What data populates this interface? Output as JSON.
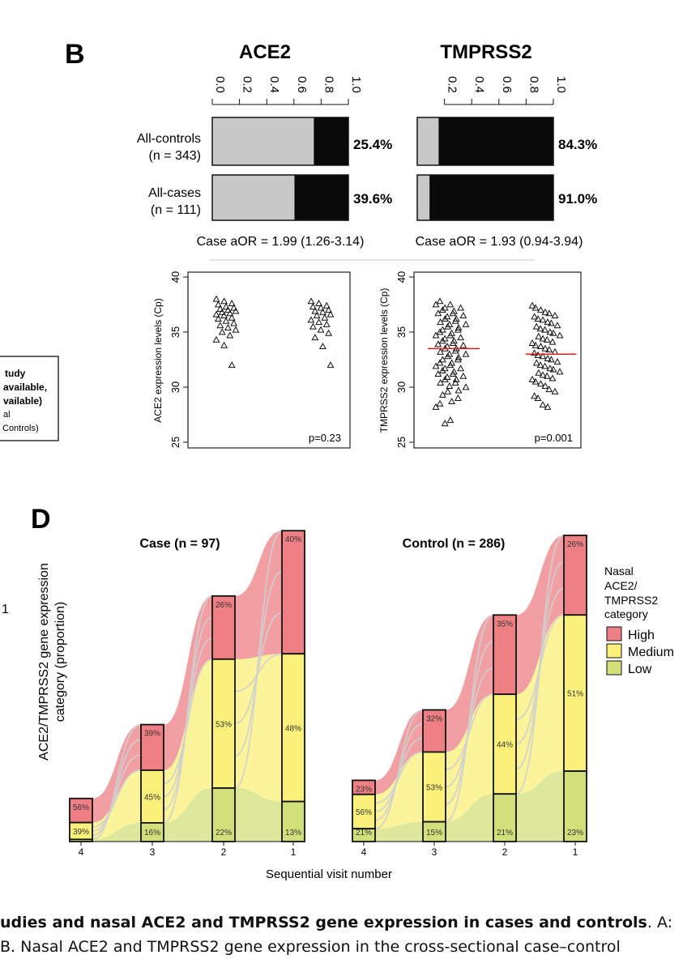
{
  "panel_b": {
    "label": "B",
    "ace2": {
      "title": "ACE2",
      "ticks": [
        "0.0",
        "0.2",
        "0.4",
        "0.6",
        "0.8",
        "1.0"
      ],
      "controls_pct": "25.4%",
      "cases_pct": "39.6%",
      "aor": "Case aOR = 1.99 (1.26-3.14)"
    },
    "tmprss2": {
      "title": "TMPRSS2",
      "ticks": [
        "0.2",
        "0.4",
        "0.6",
        "0.8",
        "1.0"
      ],
      "controls_pct": "84.3%",
      "cases_pct": "91.0%",
      "aor": "Case aOR = 1.93 (0.94-3.94)"
    },
    "row_labels": {
      "controls_line1": "All-controls",
      "controls_line2": "(n = 343)",
      "cases_line1": "All-cases",
      "cases_line2": "(n = 111)"
    },
    "colors": {
      "light": "#c8c8c8",
      "dark": "#0a0a0a"
    }
  },
  "panel_b_scatter": {
    "ace2": {
      "ylabel": "ACE2 expression levels (Cp)",
      "yticks": [
        "25",
        "30",
        "35",
        "40"
      ],
      "p": "p=0.23"
    },
    "tmprss2": {
      "ylabel": "TMPRSS2 expression levels (Cp)",
      "yticks": [
        "25",
        "30",
        "35",
        "40"
      ],
      "p": "p=0.001",
      "median_color": "#d42020"
    }
  },
  "left_legend": {
    "lines": [
      "tudy",
      "available,",
      "vailable)",
      "al",
      "Controls)"
    ]
  },
  "left_fragment": "1",
  "panel_d": {
    "label": "D",
    "ylabel_line1": "ACE2/TMPRSS2 gene expression",
    "ylabel_line2": "category (proportion)",
    "xlabel": "Sequential visit number",
    "case_title": "Case (n = 97)",
    "control_title": "Control (n = 286)",
    "legend": {
      "title_lines": [
        "Nasal",
        "ACE2/",
        "TMPRSS2",
        "category"
      ],
      "items": [
        {
          "label": "High",
          "color": "#ee7f84"
        },
        {
          "label": "Medium",
          "color": "#faf07a"
        },
        {
          "label": "Low",
          "color": "#d2e07c"
        }
      ]
    }
  },
  "chart_data": [
    {
      "type": "bar",
      "title": "ACE2",
      "categories": [
        "All-controls (n = 343)",
        "All-cases (n = 111)"
      ],
      "series": [
        {
          "values": [
            0.254,
            0.396
          ]
        }
      ],
      "value_labels": [
        "25.4%",
        "39.6%"
      ],
      "ylim": [
        0,
        1
      ],
      "orientation": "horizontal-stacked-proportion"
    },
    {
      "type": "bar",
      "title": "TMPRSS2",
      "categories": [
        "All-controls (n = 343)",
        "All-cases (n = 111)"
      ],
      "series": [
        {
          "values": [
            0.843,
            0.91
          ]
        }
      ],
      "value_labels": [
        "84.3%",
        "91.0%"
      ],
      "ylim": [
        0,
        1
      ],
      "orientation": "horizontal-stacked-proportion"
    },
    {
      "type": "scatter",
      "ylabel": "ACE2 expression levels (Cp)",
      "ylim": [
        25,
        40
      ],
      "groups": [
        {
          "name": "group1",
          "y": [
            38,
            37.8,
            37.6,
            37.5,
            37.3,
            37.2,
            37.1,
            37.0,
            36.9,
            36.8,
            36.7,
            36.6,
            36.5,
            36.3,
            36.2,
            36.0,
            35.8,
            35.6,
            35.4,
            35.2,
            35.0,
            34.7,
            34.3,
            33.8,
            32.0
          ]
        },
        {
          "name": "group2",
          "y": [
            37.8,
            37.6,
            37.4,
            37.3,
            37.2,
            37.0,
            36.9,
            36.8,
            36.6,
            36.5,
            36.3,
            36.1,
            35.9,
            35.7,
            35.5,
            35.2,
            34.9,
            34.5,
            33.7,
            32.0
          ]
        }
      ],
      "annotation": "p=0.23"
    },
    {
      "type": "scatter",
      "ylabel": "TMPRSS2 expression levels (Cp)",
      "ylim": [
        25,
        40
      ],
      "groups": [
        {
          "name": "group1",
          "median": 33.5,
          "y": [
            37.8,
            37.5,
            37.2,
            37.0,
            36.7,
            36.5,
            36.2,
            36.0,
            35.7,
            35.5,
            35.2,
            35.0,
            34.7,
            34.5,
            34.2,
            34.0,
            33.8,
            33.5,
            33.3,
            33.0,
            32.8,
            32.5,
            32.2,
            32.0,
            31.7,
            31.5,
            31.2,
            31.0,
            30.7,
            30.4,
            30.0,
            29.6,
            29.0,
            28.5,
            27.0
          ]
        },
        {
          "name": "group2",
          "median": 33.0,
          "y": [
            37.2,
            36.8,
            36.5,
            36.2,
            35.9,
            35.6,
            35.3,
            35.0,
            34.7,
            34.4,
            34.1,
            33.8,
            33.5,
            33.2,
            32.9,
            32.6,
            32.3,
            32.0,
            31.7,
            31.4,
            31.1,
            30.8,
            30.5,
            30.1,
            29.6,
            29.0,
            28.2
          ]
        }
      ],
      "annotation": "p=0.001"
    },
    {
      "type": "bar",
      "title": "Case (n = 97)",
      "xlabel": "Sequential visit number",
      "ylabel": "ACE2/TMPRSS2 gene expression category (proportion)",
      "categories": [
        "4",
        "3",
        "2",
        "1"
      ],
      "series": [
        {
          "name": "High",
          "values": [
            0.56,
            0.39,
            0.26,
            0.4
          ],
          "labels": [
            "56%",
            "39%",
            "26%",
            "40%"
          ]
        },
        {
          "name": "Medium",
          "values": [
            0.39,
            0.45,
            0.53,
            0.48
          ],
          "labels": [
            "39%",
            "45%",
            "53%",
            "48%"
          ]
        },
        {
          "name": "Low",
          "values": [
            0.05,
            0.16,
            0.22,
            0.13
          ],
          "labels": [
            "",
            "16%",
            "22%",
            "13%"
          ]
        }
      ],
      "bar_heights_relative": [
        0.14,
        0.38,
        0.79,
        1.0
      ]
    },
    {
      "type": "bar",
      "title": "Control (n = 286)",
      "xlabel": "Sequential visit number",
      "categories": [
        "4",
        "3",
        "2",
        "1"
      ],
      "series": [
        {
          "name": "High",
          "values": [
            0.23,
            0.32,
            0.35,
            0.26
          ],
          "labels": [
            "23%",
            "32%",
            "35%",
            "26%"
          ]
        },
        {
          "name": "Medium",
          "values": [
            0.56,
            0.53,
            0.44,
            0.51
          ],
          "labels": [
            "56%",
            "53%",
            "44%",
            "51%"
          ]
        },
        {
          "name": "Low",
          "values": [
            0.21,
            0.15,
            0.21,
            0.23
          ],
          "labels": [
            "21%",
            "15%",
            "21%",
            "23%"
          ]
        }
      ],
      "bar_heights_relative": [
        0.2,
        0.43,
        0.74,
        1.0
      ]
    }
  ],
  "caption": {
    "line1_bold": "udies and nasal ACE2 and TMPRSS2 gene expression in cases and controls",
    "line1_rest": ". A:",
    "line2": "B. Nasal ACE2 and TMPRSS2 gene expression in the cross-sectional case–control"
  }
}
